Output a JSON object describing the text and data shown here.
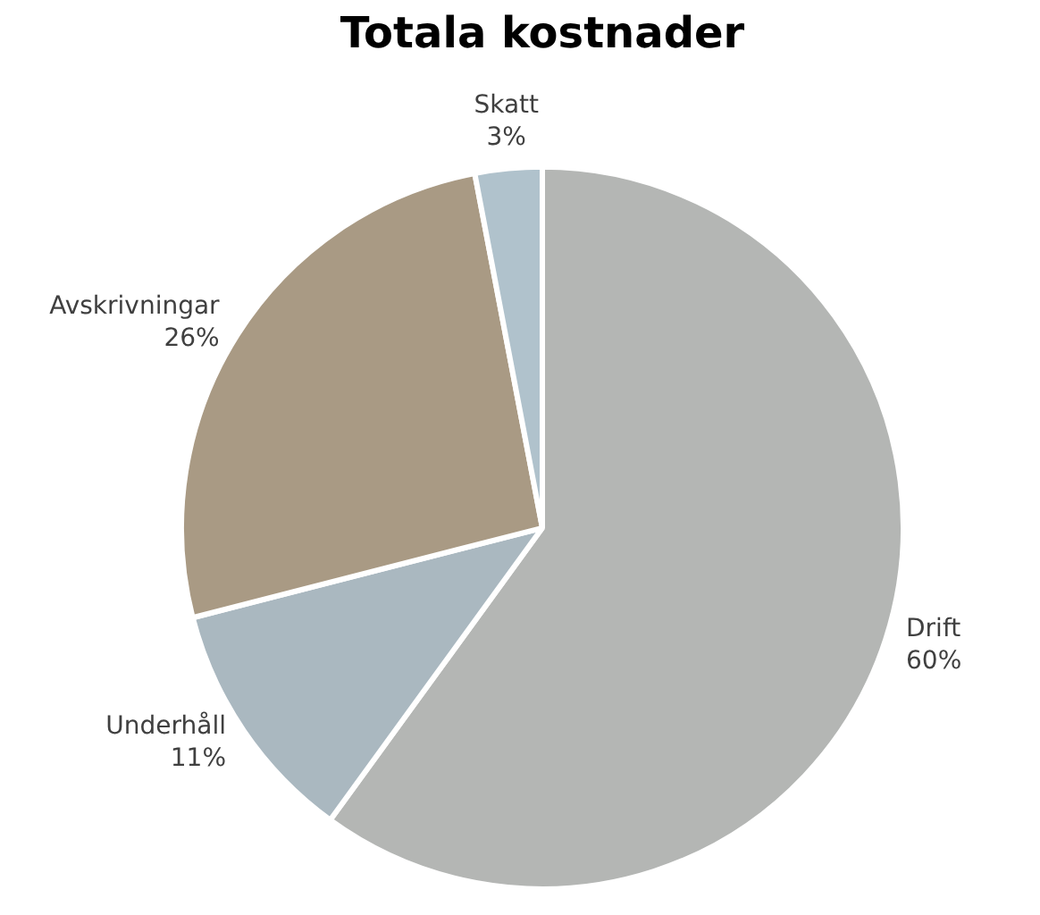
{
  "chart_data": {
    "type": "pie",
    "title": "Totala kostnader",
    "categories": [
      "Drift",
      "Underhåll",
      "Avskrivningar",
      "Skatt"
    ],
    "values": [
      60,
      11,
      26,
      3
    ],
    "value_labels": [
      "60%",
      "11%",
      "26%",
      "3%"
    ],
    "colors": [
      "#b4b6b4",
      "#aab8c0",
      "#a99a84",
      "#b0c2cc"
    ],
    "legend": false
  }
}
